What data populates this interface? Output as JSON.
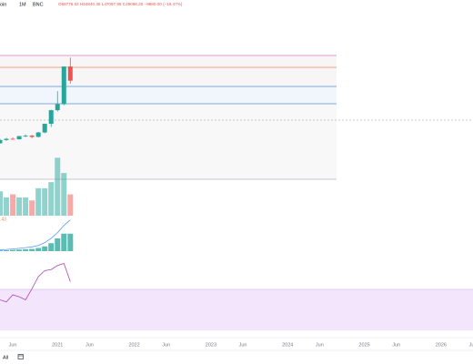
{
  "header": {
    "symbol": "oin",
    "interval": "1M",
    "exchange": "BNC",
    "ohlc": "O58776.02 H64840.36 L47097.95 C49098.20 −9680.00 (−16.47%)"
  },
  "indicator_label": ".43",
  "range_button": "All",
  "chart_data": {
    "type": "candlestick",
    "x": [
      "2020-04",
      "2020-05",
      "2020-06",
      "2020-07",
      "2020-08",
      "2020-09",
      "2020-10",
      "2020-11",
      "2020-12",
      "2021-01",
      "2021-02",
      "2021-03"
    ],
    "open": [
      6412,
      8630,
      9450,
      9138,
      11335,
      11650,
      10776,
      13797,
      19695,
      28990,
      33114,
      58776.02
    ],
    "high": [
      9460,
      10067,
      10380,
      11444,
      12468,
      12050,
      14100,
      19863,
      29300,
      41950,
      58352,
      64840.36
    ],
    "low": [
      6150,
      8117,
      8833,
      8977,
      10525,
      9825,
      10416,
      13195,
      17572,
      28130,
      32296,
      47097.95
    ],
    "close": [
      8630,
      9450,
      9138,
      11335,
      11650,
      10776,
      13797,
      19695,
      28990,
      33114,
      58778,
      49098.2
    ],
    "up_color": "#26a69a",
    "down_color": "#ef5350",
    "xlim": [
      "2020-04",
      "2026-06"
    ],
    "ylim": [
      -20000,
      70000
    ],
    "xticks": [
      {
        "value": "2020-06",
        "label": "Jun"
      },
      {
        "value": "2021-01",
        "label": "2021"
      },
      {
        "value": "2021-06",
        "label": "Jun"
      },
      {
        "value": "2022-01",
        "label": "2022"
      },
      {
        "value": "2022-06",
        "label": "Jun"
      },
      {
        "value": "2023-01",
        "label": "2023"
      },
      {
        "value": "2023-06",
        "label": "Jun"
      },
      {
        "value": "2024-01",
        "label": "2024"
      },
      {
        "value": "2024-06",
        "label": "Jun"
      },
      {
        "value": "2025-01",
        "label": "2025"
      },
      {
        "value": "2025-06",
        "label": "Jun"
      },
      {
        "value": "2026-01",
        "label": "2026"
      },
      {
        "value": "2026-06",
        "label": "Jun"
      }
    ],
    "volume": {
      "values": [
        40,
        30,
        35,
        30,
        30,
        25,
        45,
        45,
        55,
        95,
        70,
        35
      ],
      "ylim": [
        0,
        100
      ]
    },
    "trend": {
      "values": [
        1,
        1.2,
        1.5,
        2,
        2.5,
        3,
        4,
        6,
        9,
        13,
        18,
        22
      ],
      "color": "#5b9cf6",
      "ylim": [
        0,
        23
      ]
    },
    "histogram": {
      "values": [
        0.5,
        0.6,
        0.8,
        1,
        1.2,
        1.4,
        2,
        3,
        5,
        8,
        11,
        11
      ],
      "color": "#26a69a",
      "ylim": [
        0,
        12
      ]
    },
    "rsi": {
      "values": [
        59,
        57,
        64,
        62,
        59,
        70,
        82,
        88,
        89,
        93,
        95,
        77
      ],
      "color": "#ab47bc",
      "ylim": [
        0,
        100
      ]
    }
  }
}
